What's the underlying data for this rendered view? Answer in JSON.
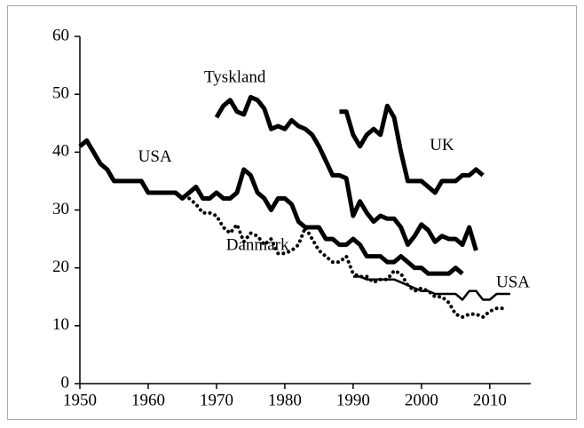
{
  "chart_data": {
    "type": "line",
    "xlim": [
      1950,
      2016
    ],
    "xticks": [
      1950,
      1960,
      1970,
      1980,
      1990,
      2000,
      2010
    ],
    "ylim": [
      0,
      60
    ],
    "yticks": [
      0,
      10,
      20,
      30,
      40,
      50,
      60
    ],
    "series": [
      {
        "name": "USA",
        "color": "#000000",
        "style": "thick",
        "x": [
          1950,
          1951,
          1952,
          1953,
          1954,
          1955,
          1956,
          1957,
          1958,
          1959,
          1960,
          1961,
          1962,
          1963,
          1964,
          1965,
          1966,
          1967,
          1968,
          1969,
          1970,
          1971,
          1972,
          1973,
          1974,
          1975,
          1976,
          1977,
          1978,
          1979,
          1980,
          1981,
          1982,
          1983,
          1984,
          1985,
          1986,
          1987,
          1988,
          1989,
          1990,
          1991,
          1992,
          1993,
          1994,
          1995,
          1996,
          1997,
          1998,
          1999,
          2000,
          2001,
          2002,
          2003,
          2004,
          2005,
          2006
        ],
        "values": [
          41,
          42,
          40,
          38,
          37,
          35,
          35,
          35,
          35,
          35,
          33,
          33,
          33,
          33,
          33,
          32,
          33,
          34,
          32,
          32,
          33,
          32,
          32,
          33,
          37,
          36,
          33,
          32,
          30,
          32,
          32,
          31,
          28,
          27,
          27,
          27,
          25,
          25,
          24,
          24,
          25,
          24,
          22,
          22,
          22,
          21,
          21,
          22,
          21,
          20,
          20,
          19,
          19,
          19,
          19,
          20,
          19
        ]
      },
      {
        "name": "Tyskland",
        "color": "#000000",
        "style": "thick",
        "x": [
          1970,
          1971,
          1972,
          1973,
          1974,
          1975,
          1976,
          1977,
          1978,
          1979,
          1980,
          1981,
          1982,
          1983,
          1984,
          1985,
          1986,
          1987,
          1988,
          1989,
          1990,
          1991,
          1992,
          1993,
          1994,
          1995,
          1996,
          1997,
          1998,
          1999,
          2000,
          2001,
          2002,
          2003,
          2004,
          2005,
          2006,
          2007,
          2008
        ],
        "values": [
          46,
          48,
          49,
          47,
          46.5,
          49.5,
          49,
          47.5,
          44,
          44.5,
          44,
          45.5,
          44.5,
          44,
          43,
          41,
          38.5,
          36,
          36,
          35.5,
          29,
          31.5,
          29.5,
          28,
          29,
          28.5,
          28.5,
          27,
          24,
          25.5,
          27.5,
          26.5,
          24.5,
          25.5,
          25,
          25,
          24,
          27,
          23
        ]
      },
      {
        "name": "UK",
        "color": "#000000",
        "style": "thick",
        "x": [
          1988,
          1989,
          1990,
          1991,
          1992,
          1993,
          1994,
          1995,
          1996,
          1997,
          1998,
          1999,
          2000,
          2001,
          2002,
          2003,
          2004,
          2005,
          2006,
          2007,
          2008,
          2009
        ],
        "values": [
          47,
          47,
          43,
          41,
          43,
          44,
          43,
          48,
          46,
          40,
          35,
          35,
          35,
          34,
          33,
          35,
          35,
          35,
          36,
          36,
          37,
          36
        ]
      },
      {
        "name": "Danmark",
        "color": "#000000",
        "style": "dotted",
        "x": [
          1966,
          1967,
          1968,
          1969,
          1970,
          1971,
          1972,
          1973,
          1974,
          1975,
          1976,
          1977,
          1978,
          1979,
          1980,
          1981,
          1982,
          1983,
          1984,
          1985,
          1986,
          1987,
          1988,
          1989,
          1990,
          1991,
          1992,
          1993,
          1994,
          1995,
          1996,
          1997,
          1998,
          1999,
          2000,
          2001,
          2002,
          2003,
          2004,
          2005,
          2006,
          2007,
          2008,
          2009,
          2010,
          2011,
          2012
        ],
        "values": [
          32,
          31,
          29.5,
          29.5,
          29,
          27,
          26,
          27.5,
          24.5,
          26,
          25.5,
          24,
          25,
          22.5,
          22.5,
          23,
          24,
          27,
          25,
          23,
          22,
          21,
          21,
          22,
          19,
          18.5,
          18.5,
          17.5,
          18,
          18,
          19.5,
          19,
          17,
          16,
          16.5,
          16,
          15,
          15,
          14,
          12,
          11.5,
          12,
          12,
          11.5,
          12.5,
          13,
          13
        ]
      },
      {
        "name": "USA",
        "color": "#000000",
        "style": "thin",
        "x": [
          1990,
          1991,
          1992,
          1993,
          1994,
          1995,
          1996,
          1997,
          1998,
          1999,
          2000,
          2001,
          2002,
          2003,
          2004,
          2005,
          2006,
          2007,
          2008,
          2009,
          2010,
          2011,
          2012,
          2013
        ],
        "values": [
          18.5,
          18.5,
          18,
          18,
          18,
          18,
          18,
          17.5,
          17,
          16.5,
          16,
          16,
          15.5,
          15.5,
          15.5,
          15.5,
          14.5,
          16,
          16,
          14.5,
          14.5,
          15.5,
          15.5,
          15.5
        ]
      }
    ]
  }
}
